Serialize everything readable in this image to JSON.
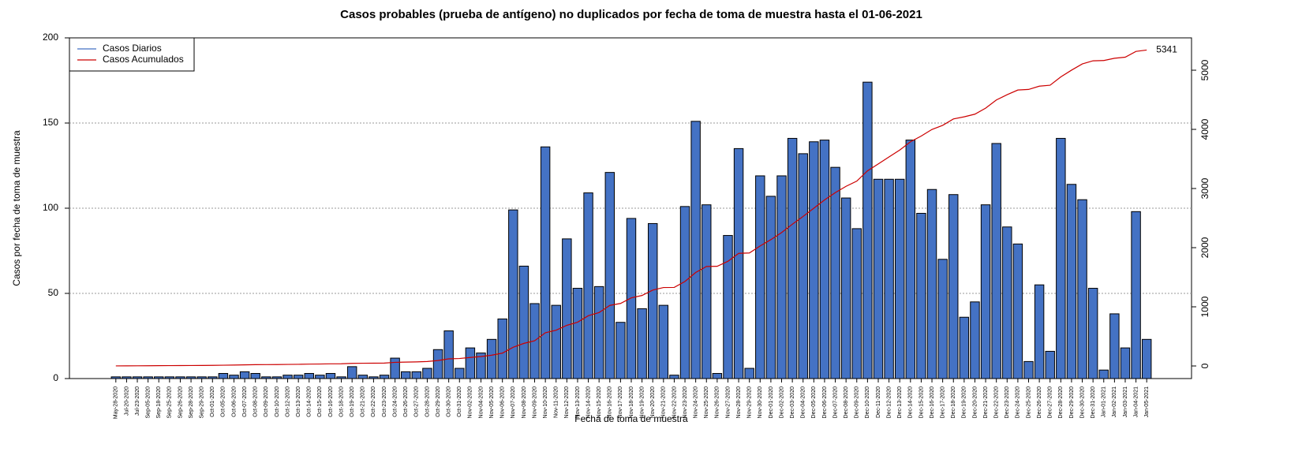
{
  "chart_data": {
    "type": "bar",
    "title": "Casos probables (prueba de antígeno) no duplicados por fecha de toma de muestra hasta el 01-06-2021",
    "x_label": "Fecha de toma de muestra",
    "y_label": "Casos por fecha de toma de muestra",
    "categories": [
      "May-28-2020",
      "Jul-20-2020",
      "Jul-23-2020",
      "Sep-05-2020",
      "Sep-18-2020",
      "Sep-25-2020",
      "Sep-26-2020",
      "Sep-28-2020",
      "Sep-29-2020",
      "Oct-01-2020",
      "Oct-05-2020",
      "Oct-06-2020",
      "Oct-07-2020",
      "Oct-08-2020",
      "Oct-09-2020",
      "Oct-10-2020",
      "Oct-12-2020",
      "Oct-13-2020",
      "Oct-14-2020",
      "Oct-15-2020",
      "Oct-16-2020",
      "Oct-18-2020",
      "Oct-19-2020",
      "Oct-21-2020",
      "Oct-22-2020",
      "Oct-23-2020",
      "Oct-24-2020",
      "Oct-26-2020",
      "Oct-27-2020",
      "Oct-28-2020",
      "Oct-29-2020",
      "Oct-30-2020",
      "Oct-31-2020",
      "Nov-02-2020",
      "Nov-04-2020",
      "Nov-05-2020",
      "Nov-06-2020",
      "Nov-07-2020",
      "Nov-08-2020",
      "Nov-09-2020",
      "Nov-10-2020",
      "Nov-11-2020",
      "Nov-12-2020",
      "Nov-13-2020",
      "Nov-14-2020",
      "Nov-15-2020",
      "Nov-16-2020",
      "Nov-17-2020",
      "Nov-18-2020",
      "Nov-19-2020",
      "Nov-20-2020",
      "Nov-21-2020",
      "Nov-22-2020",
      "Nov-23-2020",
      "Nov-24-2020",
      "Nov-25-2020",
      "Nov-26-2020",
      "Nov-27-2020",
      "Nov-28-2020",
      "Nov-29-2020",
      "Nov-30-2020",
      "Dec-01-2020",
      "Dec-02-2020",
      "Dec-03-2020",
      "Dec-04-2020",
      "Dec-05-2020",
      "Dec-06-2020",
      "Dec-07-2020",
      "Dec-08-2020",
      "Dec-09-2020",
      "Dec-10-2020",
      "Dec-11-2020",
      "Dec-12-2020",
      "Dec-13-2020",
      "Dec-14-2020",
      "Dec-15-2020",
      "Dec-16-2020",
      "Dec-17-2020",
      "Dec-18-2020",
      "Dec-19-2020",
      "Dec-20-2020",
      "Dec-21-2020",
      "Dec-22-2020",
      "Dec-23-2020",
      "Dec-24-2020",
      "Dec-25-2020",
      "Dec-26-2020",
      "Dec-27-2020",
      "Dec-28-2020",
      "Dec-29-2020",
      "Dec-30-2020",
      "Dec-31-2020",
      "Jan-01-2021",
      "Jan-02-2021",
      "Jan-03-2021",
      "Jan-04-2021",
      "Jan-05-2021"
    ],
    "series": [
      {
        "name": "Casos Diarios",
        "color": "#4472c4",
        "values": [
          1,
          1,
          1,
          1,
          1,
          1,
          1,
          1,
          1,
          1,
          3,
          2,
          4,
          3,
          1,
          1,
          2,
          2,
          3,
          2,
          3,
          1,
          7,
          2,
          1,
          2,
          12,
          4,
          4,
          6,
          17,
          28,
          6,
          18,
          15,
          23,
          35,
          99,
          66,
          44,
          136,
          43,
          82,
          53,
          109,
          54,
          121,
          33,
          94,
          41,
          91,
          43,
          2,
          101,
          151,
          102,
          3,
          84,
          135,
          6,
          119,
          107,
          119,
          141,
          132,
          139,
          140,
          124,
          106,
          88,
          174,
          117,
          117,
          117,
          140,
          97,
          111,
          70,
          108,
          36,
          45,
          102,
          138,
          89,
          79,
          10,
          55,
          16,
          141,
          114,
          105,
          53,
          5,
          38,
          18,
          98,
          23
        ]
      },
      {
        "name": "Casos Acumulados",
        "color": "#cc0000",
        "axis": "y2",
        "values": [
          1,
          2,
          3,
          4,
          5,
          6,
          7,
          8,
          9,
          10,
          13,
          15,
          19,
          22,
          23,
          24,
          26,
          28,
          31,
          33,
          36,
          37,
          44,
          46,
          47,
          49,
          61,
          65,
          69,
          75,
          92,
          120,
          126,
          144,
          159,
          182,
          217,
          316,
          382,
          426,
          562,
          605,
          687,
          740,
          849,
          903,
          1024,
          1057,
          1151,
          1192,
          1283,
          1326,
          1328,
          1429,
          1580,
          1682,
          1685,
          1769,
          1904,
          1910,
          2029,
          2136,
          2255,
          2396,
          2528,
          2667,
          2807,
          2931,
          3037,
          3125,
          3299,
          3416,
          3533,
          3650,
          3790,
          3887,
          3998,
          4068,
          4176,
          4212,
          4257,
          4359,
          4497,
          4586,
          4665,
          4675,
          4730,
          4746,
          4887,
          5001,
          5106,
          5159,
          5164,
          5202,
          5220,
          5318,
          5341
        ]
      }
    ],
    "ylim": [
      0,
      200
    ],
    "yticks": [
      0,
      50,
      100,
      150,
      200
    ],
    "y2lim": [
      -213,
      5547
    ],
    "y2ticks": [
      0,
      1000,
      2000,
      3000,
      4000,
      5000
    ],
    "grid": true,
    "legend": "top-left"
  }
}
